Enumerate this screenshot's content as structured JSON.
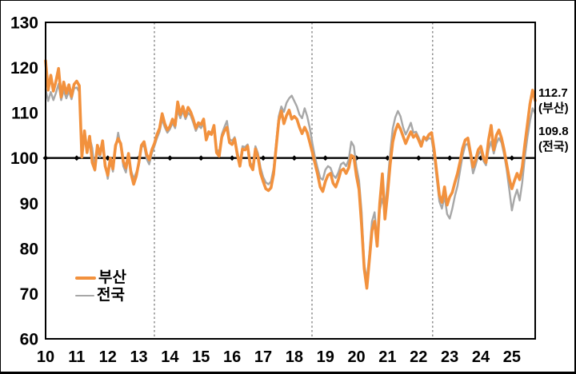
{
  "chart_data": {
    "type": "line",
    "title": "",
    "xlabel": "",
    "ylabel": "",
    "xlim": [
      10,
      25.75
    ],
    "ylim": [
      60,
      130
    ],
    "y_ticks": [
      60,
      70,
      80,
      90,
      100,
      110,
      120,
      130
    ],
    "x_tick_labels": [
      "10",
      "11",
      "12",
      "13",
      "14",
      "15",
      "16",
      "17",
      "18",
      "19",
      "20",
      "21",
      "22",
      "23",
      "24",
      "25"
    ],
    "baseline_value": 100,
    "baseline_marker_years": [
      10,
      11,
      12,
      13,
      14,
      15,
      16,
      17,
      18,
      19,
      20,
      21,
      22,
      23,
      24,
      25
    ],
    "dashed_vlines_x": [
      13.5,
      18.57,
      22.45
    ],
    "grid": false,
    "legend_position": "inside-bottom-left",
    "x_start": 10,
    "x_step_years": 0.0833333,
    "series": [
      {
        "name": "부산",
        "color": "#F2913D",
        "line_width": 3.6,
        "end_label": "112.7",
        "end_label_sub": "(부산)",
        "values": [
          121.5,
          115.0,
          118.3,
          114.8,
          117.0,
          119.8,
          113.5,
          116.8,
          114.3,
          116.2,
          113.6,
          116.3,
          117.0,
          116.0,
          100.2,
          106.0,
          101.2,
          104.8,
          99.0,
          97.4,
          102.8,
          100.8,
          103.8,
          98.2,
          96.2,
          100.0,
          97.6,
          102.8,
          104.3,
          103.2,
          99.2,
          97.8,
          101.0,
          96.5,
          94.2,
          96.0,
          99.0,
          102.8,
          103.6,
          100.8,
          99.6,
          101.8,
          103.2,
          105.2,
          106.6,
          109.8,
          107.6,
          106.2,
          107.0,
          108.6,
          107.2,
          112.4,
          109.6,
          111.4,
          109.2,
          111.2,
          110.2,
          108.6,
          106.6,
          107.8,
          107.4,
          108.6,
          104.0,
          105.8,
          105.2,
          107.2,
          101.2,
          100.4,
          104.6,
          106.0,
          106.8,
          103.4,
          103.0,
          104.2,
          100.8,
          98.2,
          102.0,
          101.8,
          102.6,
          98.4,
          97.4,
          102.0,
          100.2,
          96.6,
          94.8,
          93.2,
          92.8,
          93.4,
          96.4,
          102.4,
          108.2,
          110.4,
          107.6,
          109.4,
          110.6,
          108.6,
          109.2,
          108.6,
          106.8,
          105.4,
          106.8,
          105.6,
          103.4,
          101.2,
          98.8,
          96.4,
          93.6,
          92.6,
          94.8,
          96.2,
          96.6,
          94.4,
          93.6,
          95.2,
          97.2,
          97.6,
          96.6,
          97.8,
          100.6,
          100.2,
          96.0,
          93.0,
          85.0,
          75.5,
          71.2,
          77.5,
          84.0,
          86.0,
          80.5,
          90.0,
          96.5,
          86.5,
          92.0,
          98.5,
          103.5,
          106.0,
          107.5,
          106.4,
          104.8,
          103.2,
          104.6,
          105.8,
          104.6,
          105.2,
          104.0,
          102.6,
          104.6,
          104.2,
          105.2,
          105.6,
          101.8,
          96.8,
          91.8,
          90.2,
          93.6,
          89.6,
          91.4,
          92.4,
          94.6,
          96.6,
          99.2,
          102.2,
          104.0,
          104.4,
          101.2,
          98.0,
          99.6,
          101.8,
          102.6,
          100.2,
          99.0,
          104.0,
          107.2,
          101.8,
          105.0,
          106.2,
          104.4,
          101.8,
          98.6,
          95.4,
          93.2,
          95.0,
          96.6,
          95.2,
          98.0,
          103.0,
          107.5,
          112.0,
          115.0,
          112.7
        ]
      },
      {
        "name": "전국",
        "color": "#A7A7A7",
        "line_width": 2.4,
        "end_label": "109.8",
        "end_label_sub": "(전국)",
        "values": [
          115.2,
          112.6,
          114.6,
          112.8,
          114.4,
          116.4,
          112.8,
          115.0,
          113.2,
          114.8,
          113.0,
          115.4,
          115.6,
          114.6,
          102.0,
          105.2,
          102.0,
          104.6,
          102.2,
          97.2,
          101.6,
          100.2,
          103.0,
          98.8,
          95.4,
          99.2,
          97.0,
          102.0,
          105.6,
          102.6,
          98.2,
          96.8,
          100.4,
          97.2,
          95.4,
          96.8,
          98.4,
          102.4,
          102.8,
          99.8,
          98.6,
          101.0,
          102.6,
          104.4,
          105.8,
          108.6,
          106.8,
          105.6,
          106.4,
          107.8,
          106.6,
          110.6,
          108.8,
          110.4,
          108.6,
          110.0,
          109.4,
          107.8,
          106.0,
          107.2,
          106.6,
          107.6,
          104.6,
          105.2,
          105.8,
          106.8,
          102.0,
          101.2,
          105.2,
          106.8,
          108.2,
          104.2,
          103.8,
          104.6,
          101.4,
          99.0,
          102.6,
          102.4,
          103.0,
          99.0,
          98.0,
          102.6,
          101.0,
          97.8,
          95.8,
          94.6,
          94.2,
          94.8,
          97.6,
          103.4,
          109.2,
          111.4,
          110.2,
          112.2,
          113.2,
          113.8,
          112.6,
          111.4,
          109.6,
          108.8,
          111.0,
          109.2,
          106.6,
          103.2,
          100.2,
          97.8,
          95.6,
          95.2,
          97.4,
          98.2,
          97.8,
          96.2,
          95.6,
          96.8,
          98.6,
          99.0,
          98.2,
          99.6,
          103.6,
          102.6,
          98.0,
          95.0,
          88.0,
          76.5,
          73.0,
          79.0,
          86.0,
          88.0,
          81.5,
          88.5,
          91.0,
          88.5,
          94.5,
          101.0,
          106.5,
          109.0,
          110.4,
          109.2,
          106.8,
          105.2,
          106.4,
          107.8,
          105.6,
          105.8,
          104.6,
          103.2,
          104.8,
          103.8,
          104.4,
          104.2,
          100.6,
          95.4,
          90.4,
          88.8,
          91.6,
          87.6,
          86.6,
          88.8,
          91.6,
          93.8,
          97.2,
          100.6,
          102.8,
          103.2,
          100.4,
          96.6,
          98.4,
          100.6,
          101.6,
          99.4,
          98.4,
          101.8,
          103.6,
          101.0,
          103.2,
          104.4,
          103.4,
          100.8,
          97.4,
          93.0,
          88.4,
          91.2,
          93.0,
          90.6,
          94.6,
          100.2,
          104.6,
          108.2,
          111.0,
          109.8
        ]
      }
    ]
  },
  "legend": {
    "items": [
      {
        "label": "부산",
        "color": "#F2913D"
      },
      {
        "label": "전국",
        "color": "#A7A7A7"
      }
    ]
  },
  "colors": {
    "busan_orange": "#F2913D",
    "nationwide_gray": "#A7A7A7",
    "baseline_black": "#000000",
    "dashed_line_gray": "#888888",
    "background": "#FFFFFF"
  }
}
